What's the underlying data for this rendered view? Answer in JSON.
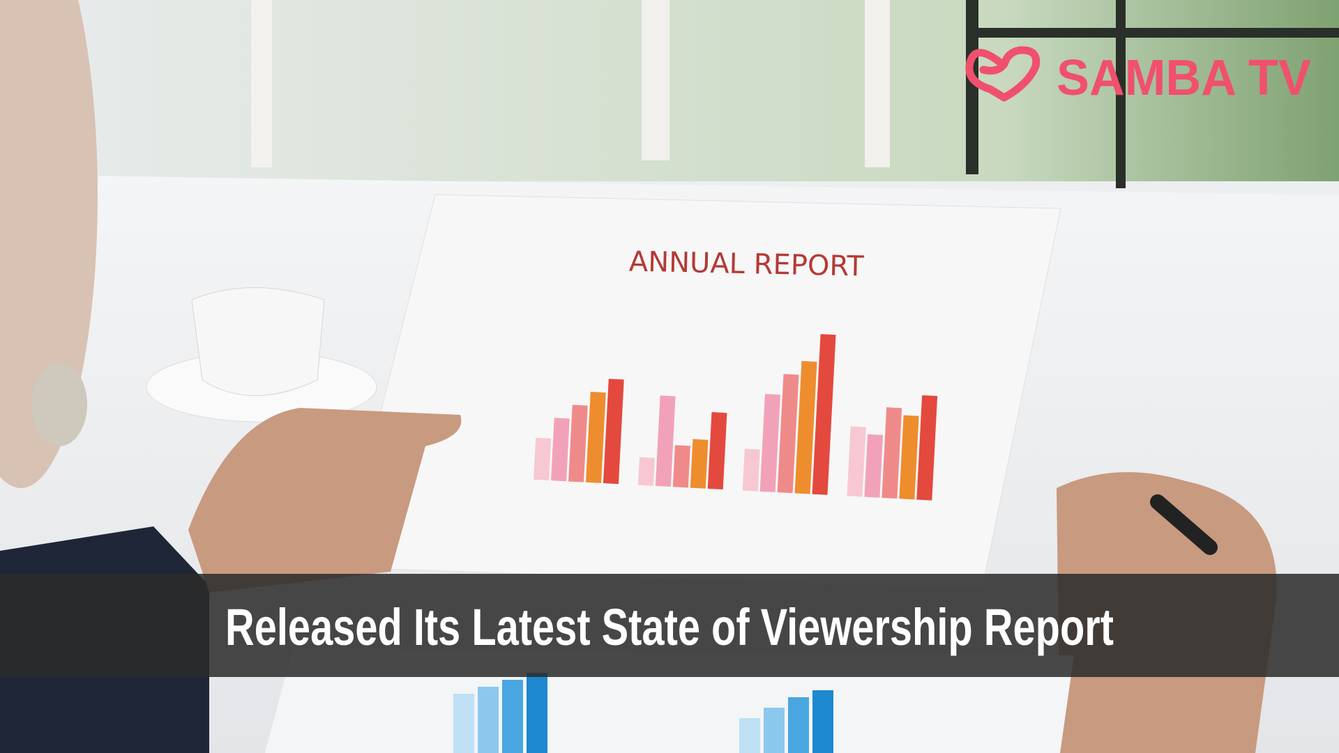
{
  "logo": {
    "text": "SAMBA TV"
  },
  "photo": {
    "paper_title": "ANNUAL REPORT"
  },
  "banner": {
    "headline": "Released Its Latest State of Viewership Report"
  }
}
